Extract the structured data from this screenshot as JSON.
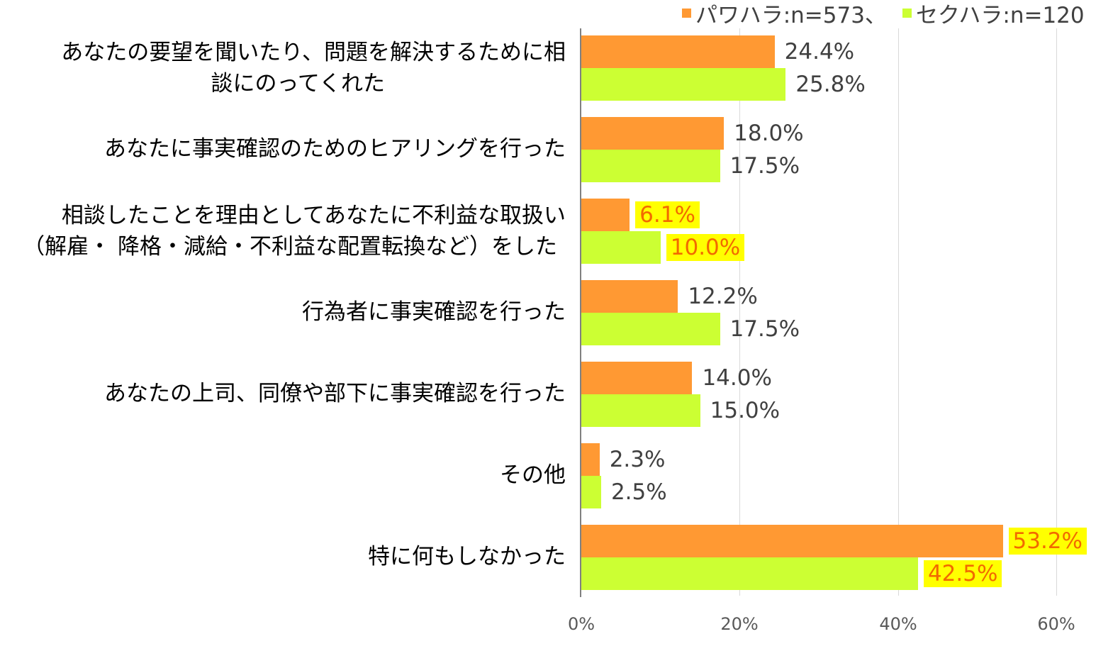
{
  "chart_data": {
    "type": "bar",
    "orientation": "horizontal",
    "title": "",
    "xlabel": "",
    "ylabel": "",
    "xlim": [
      0,
      60
    ],
    "x_ticks": [
      "0%",
      "20%",
      "40%",
      "60%"
    ],
    "grid": true,
    "legend_position": "top-right",
    "categories": [
      "あなたの要望を聞いたり、問題を解決するために相談にのってくれた",
      "あなたに事実確認のためのヒアリングを行った",
      "相談したことを理由としてあなたに不利益な取扱い（解雇・降格・減給・不利益な配置転換など）をした",
      "行為者に事実確認を行った",
      "あなたの上司、同僚や部下に事実確認を行った",
      "その他",
      "特に何もしなかった"
    ],
    "series": [
      {
        "name": "パワハラ:n=573",
        "color": "#ff9933",
        "values": [
          24.4,
          18.0,
          6.1,
          12.2,
          14.0,
          2.3,
          53.2
        ]
      },
      {
        "name": "セクハラ:n=120",
        "color": "#ccff33",
        "values": [
          25.8,
          17.5,
          10.0,
          17.5,
          15.0,
          2.5,
          42.5
        ]
      }
    ],
    "highlighted_labels": [
      "6.1%",
      "10.0%",
      "53.2%",
      "42.5%"
    ]
  },
  "legend": {
    "power": {
      "label": "パワハラ:n=573、",
      "color": "#ff9933"
    },
    "sexual": {
      "label": "セクハラ:n=120",
      "color": "#ccff33"
    }
  },
  "categories": [
    {
      "line1": "あなたの要望を聞いたり、問題を解決するために相",
      "line2": "談にのってくれた"
    },
    {
      "line1": "あなたに事実確認のためのヒアリングを行った",
      "line2": ""
    },
    {
      "line1": "相談したことを理由としてあなたに不利益な取扱い",
      "line2": "（解雇・ 降格・減給・不利益な配置転換など）をした"
    },
    {
      "line1": "行為者に事実確認を行った",
      "line2": ""
    },
    {
      "line1": "あなたの上司、同僚や部下に事実確認を行った",
      "line2": ""
    },
    {
      "line1": "その他",
      "line2": ""
    },
    {
      "line1": "特に何もしなかった",
      "line2": ""
    }
  ],
  "labels": {
    "power": [
      "24.4%",
      "18.0%",
      "6.1%",
      "12.2%",
      "14.0%",
      "2.3%",
      "53.2%"
    ],
    "sexual": [
      "25.8%",
      "17.5%",
      "10.0%",
      "17.5%",
      "15.0%",
      "2.5%",
      "42.5%"
    ]
  },
  "axis": {
    "ticks": [
      "0%",
      "20%",
      "40%",
      "60%"
    ]
  }
}
